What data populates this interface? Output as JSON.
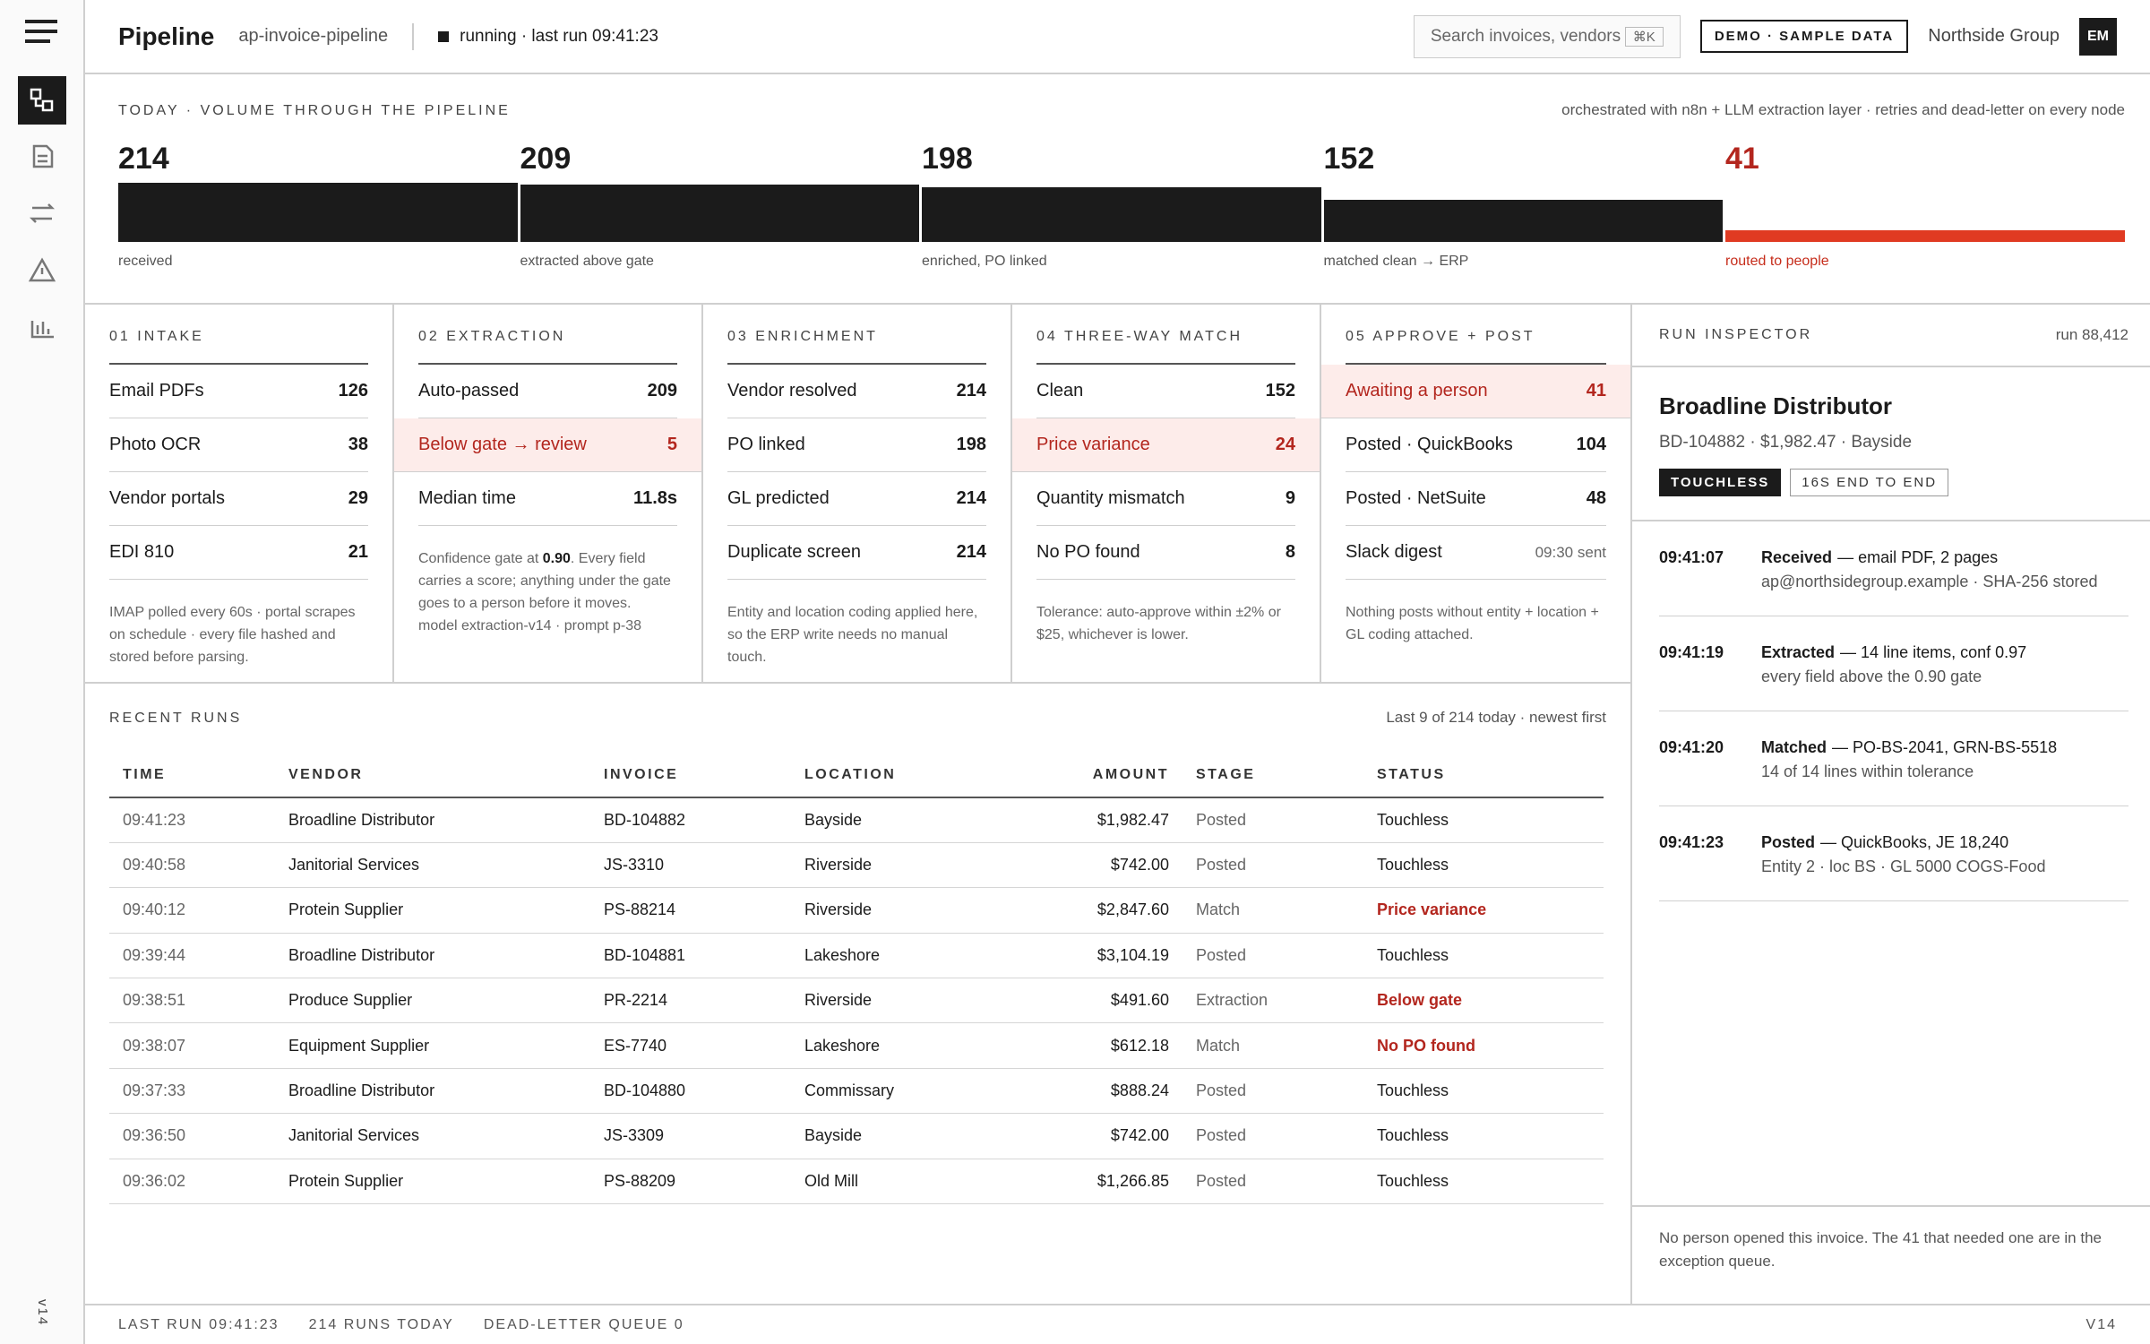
{
  "topbar": {
    "title": "Pipeline",
    "pipeline": "ap-invoice-pipeline",
    "status": "running · last run 09:41:23",
    "search": "Search invoices, vendors",
    "shortcut": "⌘K",
    "demo": "DEMO · SAMPLE DATA",
    "org": "Northside Group",
    "avatar": "EM"
  },
  "sidebar": {
    "version": "v14"
  },
  "funnel": {
    "label": "TODAY · VOLUME THROUGH THE PIPELINE",
    "note": "orchestrated with n8n + LLM extraction layer · retries and dead-letter on every node",
    "stages": [
      {
        "value": 214,
        "label": "received"
      },
      {
        "value": 209,
        "label": "extracted above gate"
      },
      {
        "value": 198,
        "label": "enriched, PO linked"
      },
      {
        "value": 152,
        "label": "matched clean → ERP"
      },
      {
        "value": 41,
        "label": "routed to people",
        "alert": true
      }
    ]
  },
  "stages": [
    {
      "title": "01 INTAKE",
      "rows": [
        {
          "label": "Email PDFs",
          "value": 126
        },
        {
          "label": "Photo OCR",
          "value": 38
        },
        {
          "label": "Vendor portals",
          "value": 29
        },
        {
          "label": "EDI 810",
          "value": 21
        }
      ],
      "note": "IMAP polled every 60s · portal scrapes on schedule · every file hashed and stored before parsing."
    },
    {
      "title": "02 EXTRACTION",
      "rows": [
        {
          "label": "Auto-passed",
          "value": 209
        },
        {
          "label": "Below gate → review",
          "value": 5,
          "alert": true
        },
        {
          "label": "Median time",
          "value": "11.8s"
        }
      ],
      "note_parts": {
        "pre": "Confidence gate at ",
        "strong": "0.90",
        "post": ". Every field carries a score; anything under the gate goes to a person before it moves.",
        "extra": "model extraction-v14 · prompt p-38"
      }
    },
    {
      "title": "03 ENRICHMENT",
      "rows": [
        {
          "label": "Vendor resolved",
          "value": 214
        },
        {
          "label": "PO linked",
          "value": 198
        },
        {
          "label": "GL predicted",
          "value": 214
        },
        {
          "label": "Duplicate screen",
          "value": 214
        }
      ],
      "note": "Entity and location coding applied here, so the ERP write needs no manual touch."
    },
    {
      "title": "04 THREE-WAY MATCH",
      "rows": [
        {
          "label": "Clean",
          "value": 152
        },
        {
          "label": "Price variance",
          "value": 24,
          "alert": true
        },
        {
          "label": "Quantity mismatch",
          "value": 9
        },
        {
          "label": "No PO found",
          "value": 8
        }
      ],
      "note": "Tolerance: auto-approve within ±2% or $25, whichever is lower."
    },
    {
      "title": "05 APPROVE + POST",
      "rows": [
        {
          "label": "Awaiting a person",
          "value": 41,
          "alert": true
        },
        {
          "label": "Posted · QuickBooks",
          "value": 104
        },
        {
          "label": "Posted · NetSuite",
          "value": 48
        },
        {
          "label": "Slack digest",
          "value": "09:30 sent",
          "muted": true
        }
      ],
      "note": "Nothing posts without entity + location + GL coding attached."
    }
  ],
  "runs": {
    "title": "RECENT RUNS",
    "note": "Last 9 of 214 today · newest first",
    "columns": [
      "TIME",
      "VENDOR",
      "INVOICE",
      "LOCATION",
      "AMOUNT",
      "STAGE",
      "STATUS"
    ],
    "rows": [
      {
        "time": "09:41:23",
        "vendor": "Broadline Distributor",
        "invoice": "BD-104882",
        "location": "Bayside",
        "amount": "$1,982.47",
        "stage": "Posted",
        "status": "Touchless"
      },
      {
        "time": "09:40:58",
        "vendor": "Janitorial Services",
        "invoice": "JS-3310",
        "location": "Riverside",
        "amount": "$742.00",
        "stage": "Posted",
        "status": "Touchless"
      },
      {
        "time": "09:40:12",
        "vendor": "Protein Supplier",
        "invoice": "PS-88214",
        "location": "Riverside",
        "amount": "$2,847.60",
        "stage": "Match",
        "status": "Price variance",
        "alert": true
      },
      {
        "time": "09:39:44",
        "vendor": "Broadline Distributor",
        "invoice": "BD-104881",
        "location": "Lakeshore",
        "amount": "$3,104.19",
        "stage": "Posted",
        "status": "Touchless"
      },
      {
        "time": "09:38:51",
        "vendor": "Produce Supplier",
        "invoice": "PR-2214",
        "location": "Riverside",
        "amount": "$491.60",
        "stage": "Extraction",
        "status": "Below gate",
        "alert": true
      },
      {
        "time": "09:38:07",
        "vendor": "Equipment Supplier",
        "invoice": "ES-7740",
        "location": "Lakeshore",
        "amount": "$612.18",
        "stage": "Match",
        "status": "No PO found",
        "alert": true
      },
      {
        "time": "09:37:33",
        "vendor": "Broadline Distributor",
        "invoice": "BD-104880",
        "location": "Commissary",
        "amount": "$888.24",
        "stage": "Posted",
        "status": "Touchless"
      },
      {
        "time": "09:36:50",
        "vendor": "Janitorial Services",
        "invoice": "JS-3309",
        "location": "Bayside",
        "amount": "$742.00",
        "stage": "Posted",
        "status": "Touchless"
      },
      {
        "time": "09:36:02",
        "vendor": "Protein Supplier",
        "invoice": "PS-88209",
        "location": "Old Mill",
        "amount": "$1,266.85",
        "stage": "Posted",
        "status": "Touchless"
      }
    ]
  },
  "inspector": {
    "title": "RUN INSPECTOR",
    "run": "run 88,412",
    "vendor": "Broadline Distributor",
    "meta": "BD-104882 · $1,982.47 · Bayside",
    "badges": [
      "TOUCHLESS",
      "16S END TO END"
    ],
    "events": [
      {
        "time": "09:41:07",
        "event": "Received",
        "detail": "— email PDF, 2 pages",
        "sub": "ap@northsidegroup.example · SHA-256 stored"
      },
      {
        "time": "09:41:19",
        "event": "Extracted",
        "detail": "— 14 line items, conf 0.97",
        "sub": "every field above the 0.90 gate"
      },
      {
        "time": "09:41:20",
        "event": "Matched",
        "detail": "— PO-BS-2041, GRN-BS-5518",
        "sub": "14 of 14 lines within tolerance"
      },
      {
        "time": "09:41:23",
        "event": "Posted",
        "detail": "— QuickBooks, JE 18,240",
        "sub": "Entity 2 · loc BS · GL 5000 COGS-Food"
      }
    ],
    "footer": "No person opened this invoice. The 41 that needed one are in the exception queue."
  },
  "footer": {
    "items": [
      "LAST RUN 09:41:23",
      "214 RUNS TODAY",
      "DEAD-LETTER QUEUE 0"
    ],
    "version": "V14"
  }
}
